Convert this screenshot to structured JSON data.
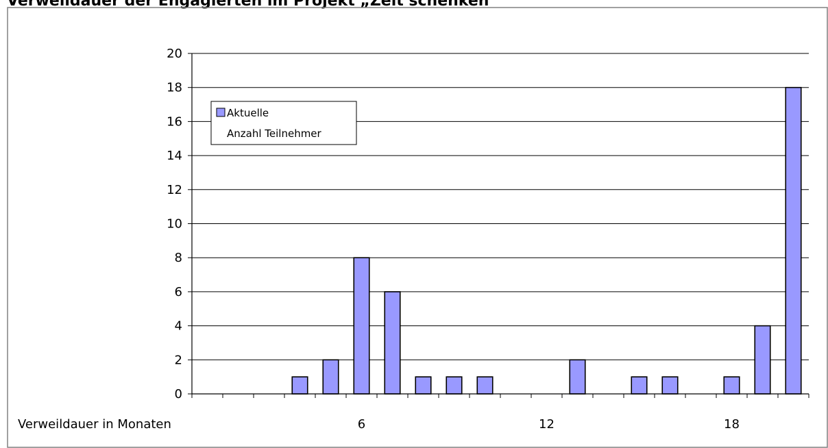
{
  "chart_data": {
    "type": "bar",
    "title": "Verweildauer der Engagierten im Projekt „Zeit schenken“",
    "xlabel": "Verweildauer in Monaten",
    "ylabel": "",
    "ylim": [
      0,
      20
    ],
    "yticks": [
      0,
      2,
      4,
      6,
      8,
      10,
      12,
      14,
      16,
      18,
      20
    ],
    "grid": true,
    "legend_position": "top-left",
    "categories": [
      1,
      2,
      3,
      4,
      5,
      6,
      7,
      8,
      9,
      10,
      11,
      12,
      13,
      14,
      15,
      16,
      17,
      18,
      19,
      20
    ],
    "category_tick_labels": [
      "",
      "",
      "",
      "",
      "",
      "6",
      "",
      "",
      "",
      "",
      "",
      "12",
      "",
      "",
      "",
      "",
      "",
      "18",
      "",
      ""
    ],
    "series": [
      {
        "name": "Aktuelle Anzahl Teilnehmer",
        "values": [
          0,
          0,
          0,
          1,
          2,
          8,
          6,
          1,
          1,
          1,
          0,
          0,
          2,
          0,
          1,
          1,
          0,
          1,
          4,
          18
        ],
        "color": "#9999ff"
      }
    ],
    "legend": {
      "line1": "Aktuelle",
      "line2": "Anzahl Teilnehmer"
    }
  }
}
